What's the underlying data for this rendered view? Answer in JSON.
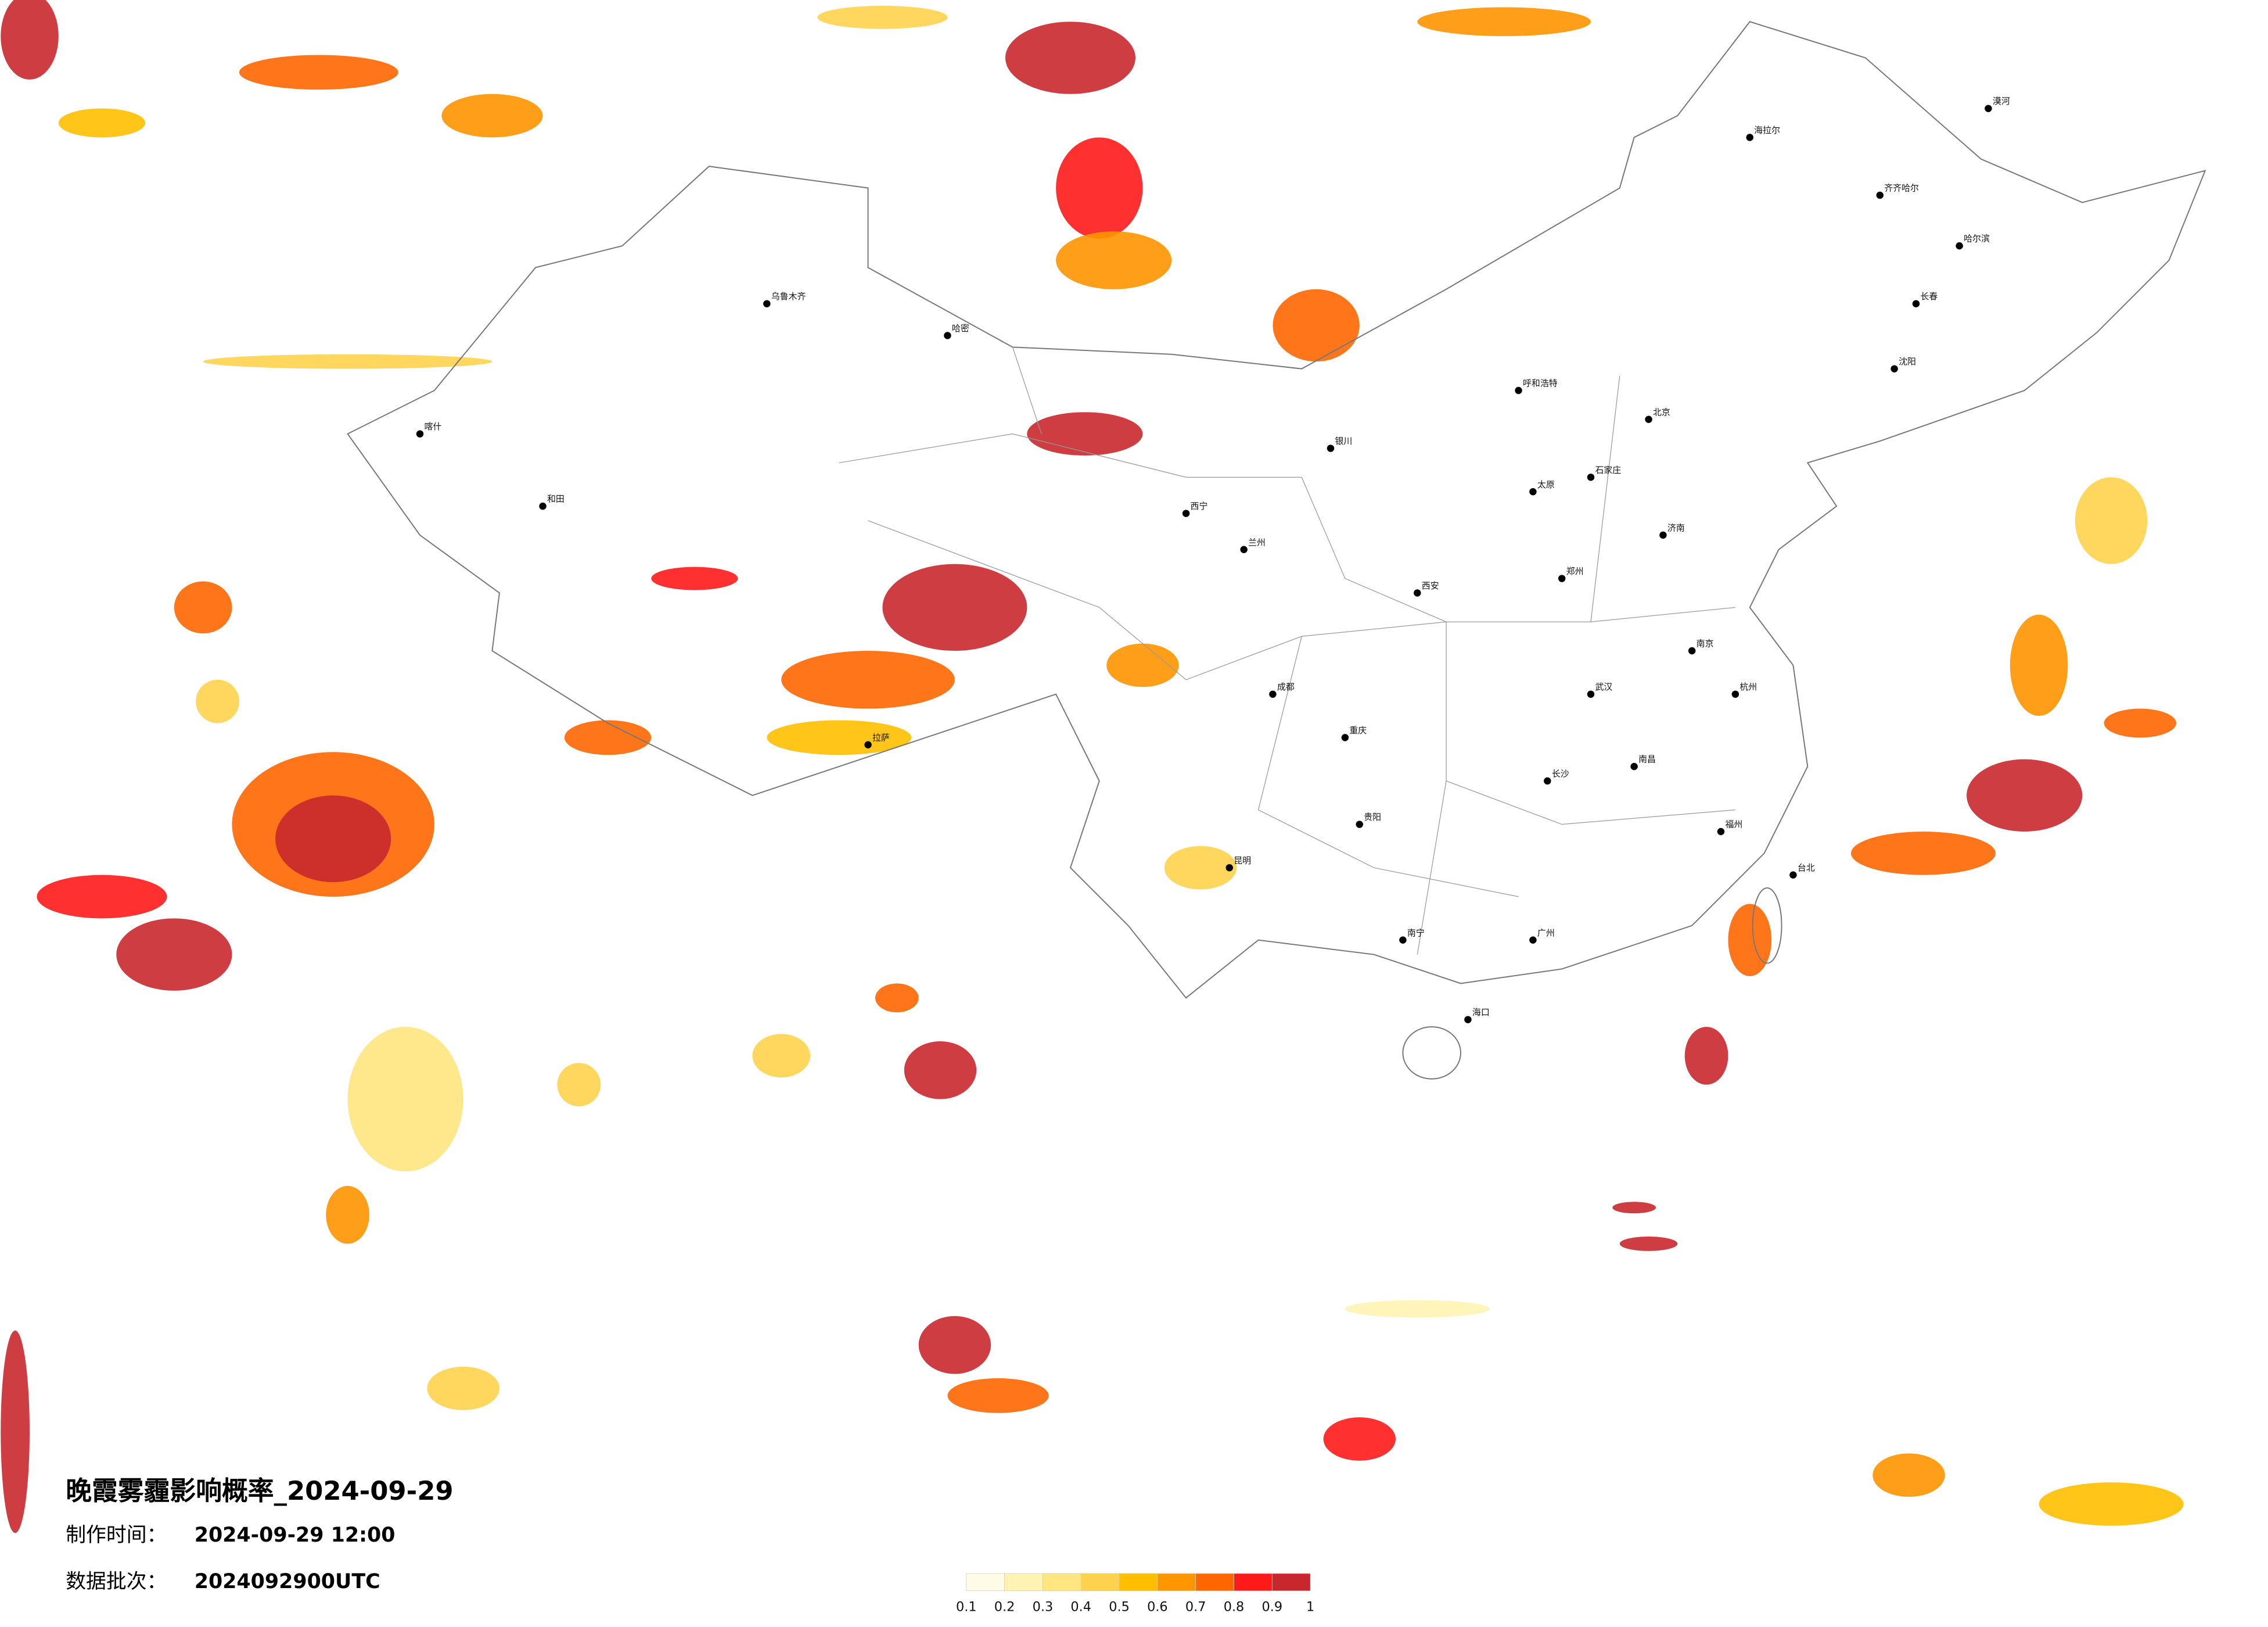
{
  "title": "晚霞雾霾影响概率_2024-09-29",
  "made_label": "制作时间：",
  "made_time": "2024-09-29 12:00",
  "batch_label": "数据批次：",
  "batch": "2024092900UTC",
  "colorbar": {
    "ticks": [
      0.1,
      0.2,
      0.3,
      0.4,
      0.5,
      0.6,
      0.7,
      0.8,
      0.9,
      1
    ],
    "colors": [
      "#fffbe6",
      "#fff3b3",
      "#ffe680",
      "#ffd24d",
      "#ffbf00",
      "#ff9500",
      "#ff6600",
      "#ff1a1a",
      "#c8282d"
    ]
  },
  "cities": [
    "漠河",
    "海拉尔",
    "齐齐哈尔",
    "哈尔滨",
    "长春",
    "沈阳",
    "北京",
    "呼和浩特",
    "银川",
    "兰州",
    "西宁",
    "拉萨",
    "昆明",
    "贵阳",
    "成都",
    "重庆",
    "武汉",
    "南昌",
    "长沙",
    "广州",
    "南宁",
    "海口",
    "福州",
    "杭州",
    "南京",
    "济南",
    "郑州",
    "西安",
    "太原",
    "石家庄",
    "乌鲁木齐",
    "和田",
    "喀什",
    "哈密",
    "台北"
  ]
}
